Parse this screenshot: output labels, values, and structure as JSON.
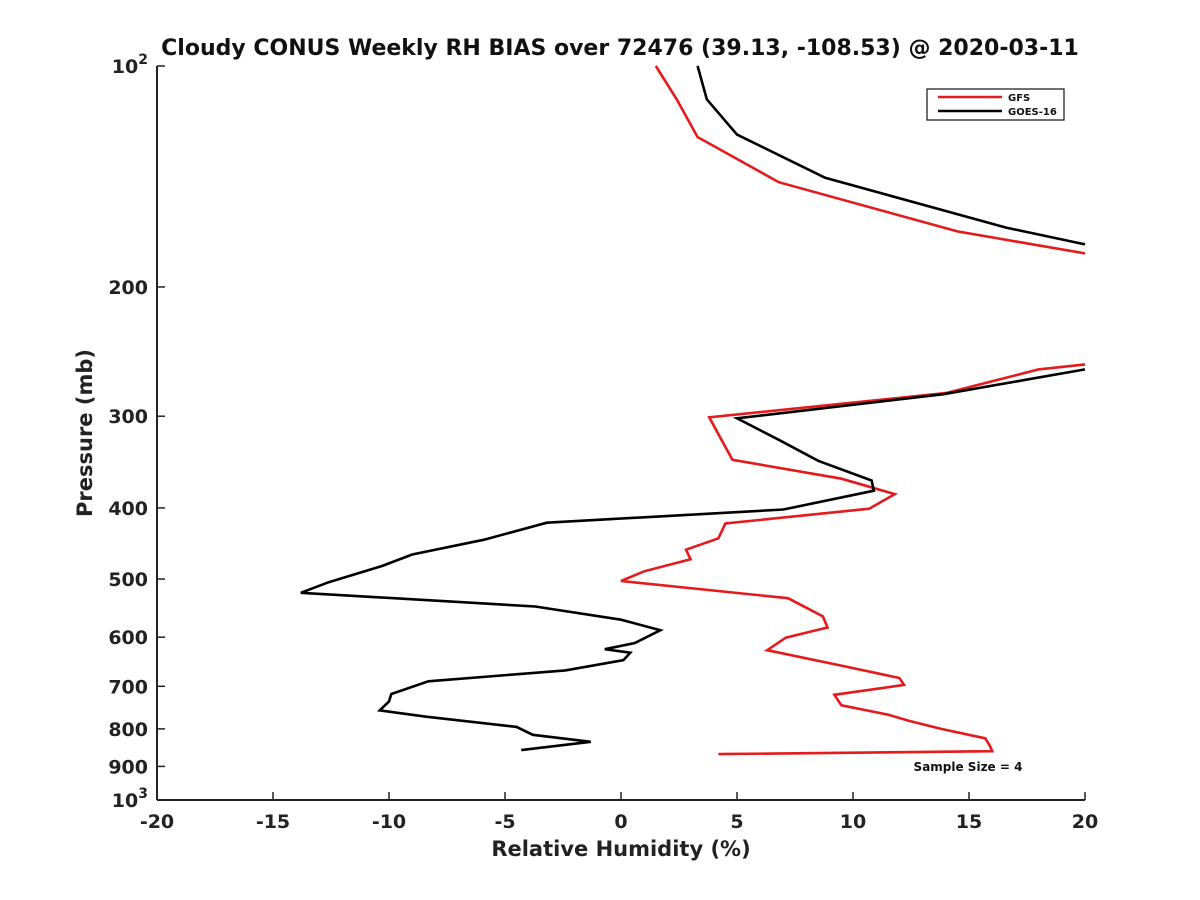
{
  "chart_data": {
    "type": "line",
    "title": "Cloudy CONUS Weekly RH BIAS over 72476 (39.13, -108.53) @ 2020-03-11",
    "xlabel": "Relative Humidity (%)",
    "ylabel": "Pressure (mb)",
    "xlim": [
      -20,
      20
    ],
    "ylim": [
      100,
      1000
    ],
    "y_scale": "log",
    "y_reversed": true,
    "x_ticks": [
      -20,
      -15,
      -10,
      -5,
      0,
      5,
      10,
      15,
      20
    ],
    "x_tick_labels": [
      "-20",
      "-15",
      "-10",
      "-5",
      "0",
      "5",
      "10",
      "15",
      "20"
    ],
    "y_ticks": [
      100,
      200,
      300,
      400,
      500,
      600,
      700,
      800,
      900,
      1000
    ],
    "y_tick_labels": [
      {
        "base": "10",
        "exp": "2"
      },
      {
        "base": "200",
        "exp": ""
      },
      {
        "base": "300",
        "exp": ""
      },
      {
        "base": "400",
        "exp": ""
      },
      {
        "base": "500",
        "exp": ""
      },
      {
        "base": "600",
        "exp": ""
      },
      {
        "base": "700",
        "exp": ""
      },
      {
        "base": "800",
        "exp": ""
      },
      {
        "base": "900",
        "exp": ""
      },
      {
        "base": "10",
        "exp": "3"
      }
    ],
    "grid": false,
    "legend_position": "top-right",
    "annotation": "Sample Size = 4",
    "series": [
      {
        "name": "GFS",
        "color": "#e41a1c",
        "segments": [
          [
            [
              1.5,
              100
            ],
            [
              2.4,
              111
            ],
            [
              3.3,
              125
            ],
            [
              6.8,
              144
            ],
            [
              14.5,
              168
            ],
            [
              20,
              180
            ]
          ],
          [
            [
              20,
              255
            ],
            [
              18,
              259
            ],
            [
              14,
              279
            ],
            [
              3.8,
              301
            ],
            [
              4.8,
              344
            ],
            [
              9.5,
              365
            ],
            [
              11.8,
              383
            ],
            [
              10.7,
              401
            ],
            [
              4.5,
              420
            ],
            [
              4.2,
              440
            ],
            [
              2.8,
              456
            ],
            [
              3.0,
              470
            ],
            [
              1.0,
              488
            ],
            [
              0.0,
              503
            ],
            [
              7.2,
              531
            ],
            [
              8.7,
              562
            ],
            [
              8.9,
              582
            ],
            [
              7.1,
              601
            ],
            [
              6.3,
              625
            ],
            [
              9.6,
              657
            ],
            [
              12.0,
              682
            ],
            [
              12.2,
              697
            ],
            [
              9.2,
              719
            ],
            [
              9.5,
              743
            ],
            [
              11.5,
              765
            ],
            [
              12.4,
              780
            ],
            [
              13.8,
              800
            ],
            [
              15.7,
              824
            ],
            [
              15.9,
              844
            ],
            [
              16.0,
              858
            ],
            [
              4.2,
              866
            ]
          ]
        ]
      },
      {
        "name": "GOES-16",
        "color": "#000000",
        "segments": [
          [
            [
              3.3,
              100
            ],
            [
              3.7,
              111
            ],
            [
              5.0,
              124
            ],
            [
              8.8,
              142
            ],
            [
              16.6,
              166
            ],
            [
              20,
              175
            ]
          ],
          [
            [
              20,
              259
            ],
            [
              13.9,
              280
            ],
            [
              5.0,
              302
            ],
            [
              6.8,
              323
            ],
            [
              8.5,
              345
            ],
            [
              10.8,
              367
            ],
            [
              10.9,
              379
            ],
            [
              7.0,
              402
            ],
            [
              -3.2,
              419
            ],
            [
              -5.9,
              442
            ],
            [
              -9.0,
              463
            ],
            [
              -10.3,
              480
            ],
            [
              -12.6,
              505
            ],
            [
              -13.8,
              522
            ],
            [
              -3.7,
              545
            ],
            [
              0.0,
              568
            ],
            [
              1.7,
              587
            ],
            [
              0.6,
              611
            ],
            [
              -0.7,
              623
            ],
            [
              0.4,
              630
            ],
            [
              0.1,
              645
            ],
            [
              -2.4,
              666
            ],
            [
              -8.3,
              689
            ],
            [
              -9.9,
              717
            ],
            [
              -10.0,
              734
            ],
            [
              -10.4,
              755
            ],
            [
              -8.4,
              770
            ],
            [
              -4.5,
              795
            ],
            [
              -3.8,
              815
            ],
            [
              -1.3,
              833
            ],
            [
              -4.3,
              855
            ]
          ]
        ]
      }
    ]
  }
}
